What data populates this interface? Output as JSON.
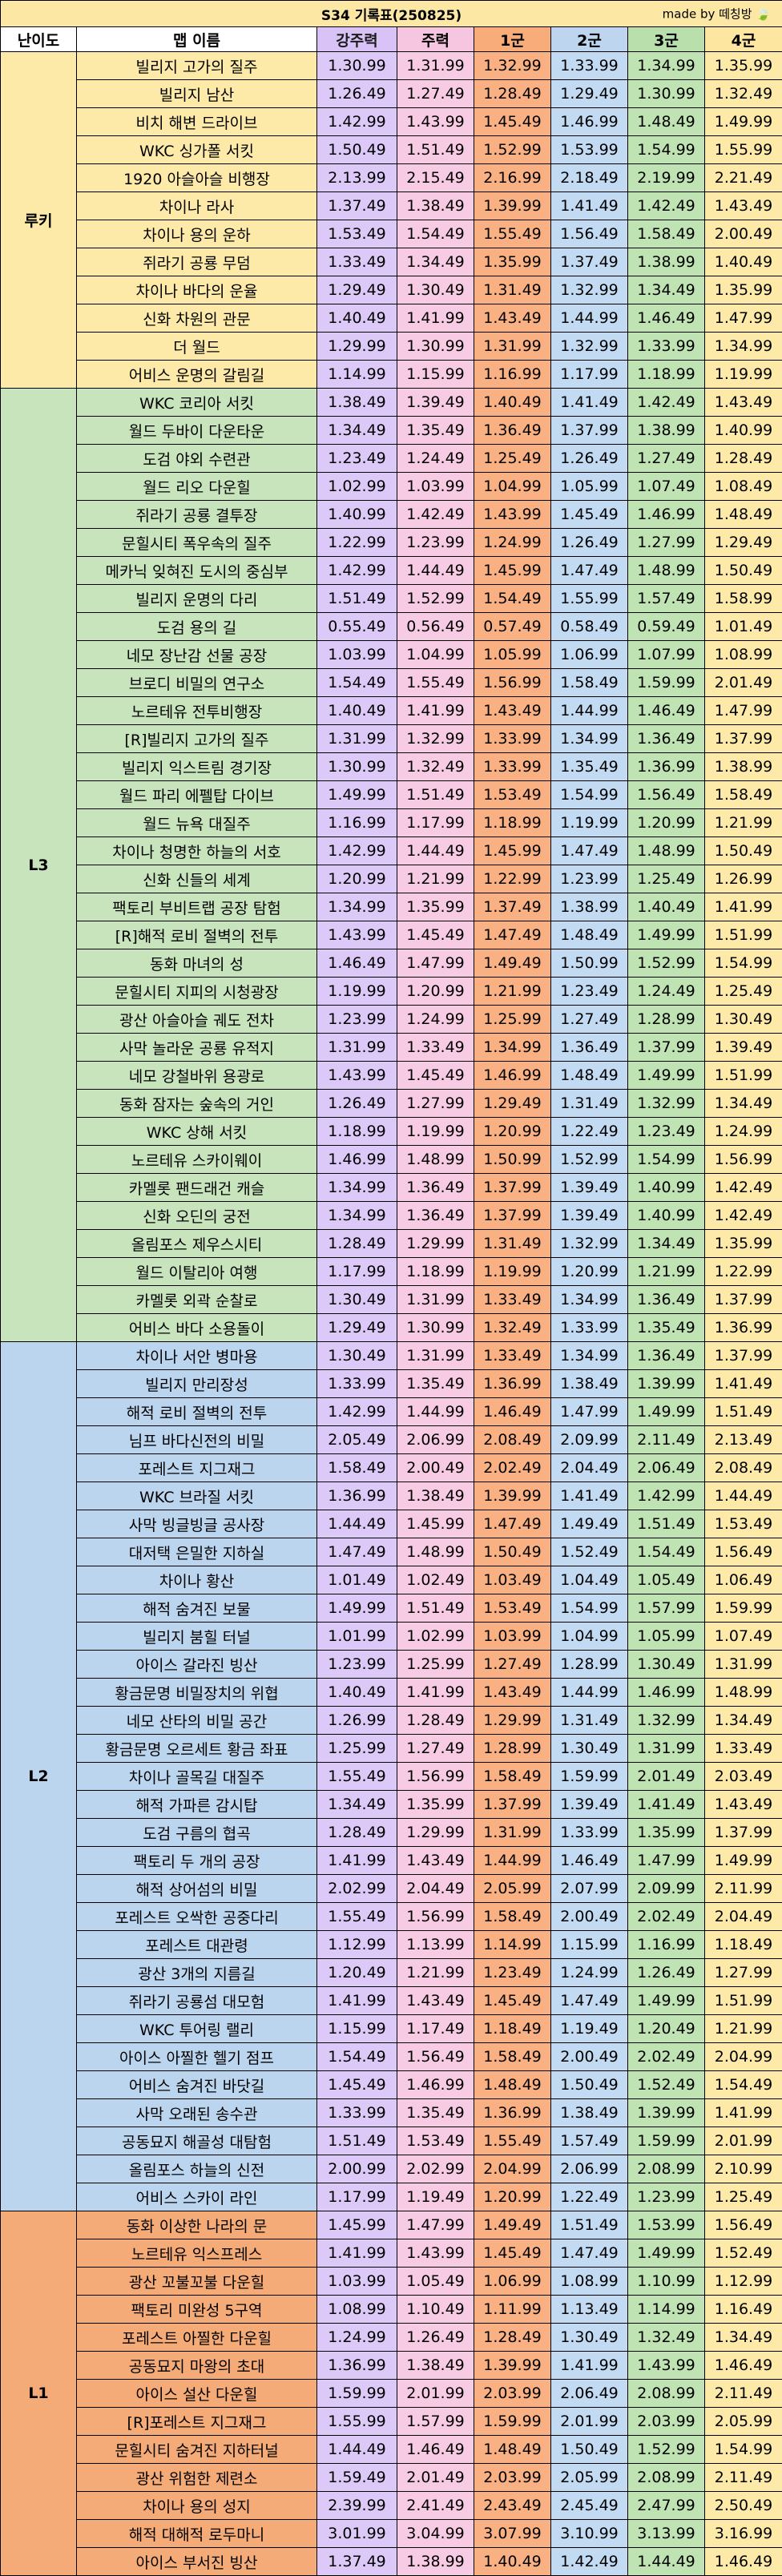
{
  "title": "S34 기록표(250825)",
  "made_by": "made by 떼칭방",
  "headers": [
    "난이도",
    "맵 이름",
    "강주력",
    "주력",
    "1군",
    "2군",
    "3군",
    "4군"
  ],
  "colors": {
    "rookie": "#fdeaa9",
    "L3": "#c8e4bd",
    "L2": "#bcd5ef",
    "L1": "#f5ab78"
  },
  "tiers": [
    {
      "label": "루키",
      "key": "rookie",
      "rows": [
        [
          "빌리지 고가의 질주",
          "1.30.99",
          "1.31.99",
          "1.32.99",
          "1.33.99",
          "1.34.99",
          "1.35.99"
        ],
        [
          "빌리지 남산",
          "1.26.49",
          "1.27.49",
          "1.28.49",
          "1.29.49",
          "1.30.99",
          "1.32.49"
        ],
        [
          "비치 해변 드라이브",
          "1.42.99",
          "1.43.99",
          "1.45.49",
          "1.46.99",
          "1.48.49",
          "1.49.99"
        ],
        [
          "WKC 싱가폴 서킷",
          "1.50.49",
          "1.51.49",
          "1.52.99",
          "1.53.99",
          "1.54.99",
          "1.55.99"
        ],
        [
          "1920 아슬아슬 비행장",
          "2.13.99",
          "2.15.49",
          "2.16.99",
          "2.18.49",
          "2.19.99",
          "2.21.49"
        ],
        [
          "차이나 라사",
          "1.37.49",
          "1.38.49",
          "1.39.99",
          "1.41.49",
          "1.42.49",
          "1.43.49"
        ],
        [
          "차이나 용의 운하",
          "1.53.49",
          "1.54.49",
          "1.55.49",
          "1.56.49",
          "1.58.49",
          "2.00.49"
        ],
        [
          "쥐라기 공룡 무덤",
          "1.33.49",
          "1.34.49",
          "1.35.99",
          "1.37.49",
          "1.38.99",
          "1.40.49"
        ],
        [
          "차이나 바다의 운율",
          "1.29.49",
          "1.30.49",
          "1.31.49",
          "1.32.99",
          "1.34.49",
          "1.35.99"
        ],
        [
          "신화 차원의 관문",
          "1.40.49",
          "1.41.99",
          "1.43.49",
          "1.44.99",
          "1.46.49",
          "1.47.99"
        ],
        [
          "더 월드",
          "1.29.99",
          "1.30.99",
          "1.31.99",
          "1.32.99",
          "1.33.99",
          "1.34.99"
        ],
        [
          "어비스 운명의 갈림길",
          "1.14.99",
          "1.15.99",
          "1.16.99",
          "1.17.99",
          "1.18.99",
          "1.19.99"
        ]
      ]
    },
    {
      "label": "L3",
      "key": "L3",
      "rows": [
        [
          "WKC 코리아 서킷",
          "1.38.49",
          "1.39.49",
          "1.40.49",
          "1.41.49",
          "1.42.49",
          "1.43.49"
        ],
        [
          "월드 두바이 다운타운",
          "1.34.49",
          "1.35.49",
          "1.36.49",
          "1.37.99",
          "1.38.99",
          "1.40.99"
        ],
        [
          "도검 야외 수련관",
          "1.23.49",
          "1.24.49",
          "1.25.49",
          "1.26.49",
          "1.27.49",
          "1.28.49"
        ],
        [
          "월드 리오 다운힐",
          "1.02.99",
          "1.03.99",
          "1.04.99",
          "1.05.99",
          "1.07.49",
          "1.08.49"
        ],
        [
          "쥐라기 공룡 결투장",
          "1.40.99",
          "1.42.49",
          "1.43.99",
          "1.45.49",
          "1.46.99",
          "1.48.49"
        ],
        [
          "문힐시티 폭우속의 질주",
          "1.22.99",
          "1.23.99",
          "1.24.99",
          "1.26.49",
          "1.27.99",
          "1.29.49"
        ],
        [
          "메카닉 잊혀진 도시의 중심부",
          "1.42.99",
          "1.44.49",
          "1.45.99",
          "1.47.49",
          "1.48.99",
          "1.50.49"
        ],
        [
          "빌리지 운명의 다리",
          "1.51.49",
          "1.52.99",
          "1.54.49",
          "1.55.99",
          "1.57.49",
          "1.58.99"
        ],
        [
          "도검 용의 길",
          "0.55.49",
          "0.56.49",
          "0.57.49",
          "0.58.49",
          "0.59.49",
          "1.01.49"
        ],
        [
          "네모 장난감 선물 공장",
          "1.03.99",
          "1.04.99",
          "1.05.99",
          "1.06.99",
          "1.07.99",
          "1.08.99"
        ],
        [
          "브로디 비밀의 연구소",
          "1.54.49",
          "1.55.49",
          "1.56.99",
          "1.58.49",
          "1.59.99",
          "2.01.49"
        ],
        [
          "노르테유 전투비행장",
          "1.40.49",
          "1.41.99",
          "1.43.49",
          "1.44.99",
          "1.46.49",
          "1.47.99"
        ],
        [
          "[R]빌리지 고가의 질주",
          "1.31.99",
          "1.32.99",
          "1.33.99",
          "1.34.99",
          "1.36.49",
          "1.37.99"
        ],
        [
          "빌리지 익스트림 경기장",
          "1.30.99",
          "1.32.49",
          "1.33.99",
          "1.35.49",
          "1.36.99",
          "1.38.99"
        ],
        [
          "월드 파리 에펠탑 다이브",
          "1.49.99",
          "1.51.49",
          "1.53.49",
          "1.54.99",
          "1.56.49",
          "1.58.49"
        ],
        [
          "월드 뉴욕 대질주",
          "1.16.99",
          "1.17.99",
          "1.18.99",
          "1.19.99",
          "1.20.99",
          "1.21.99"
        ],
        [
          "차이나 청명한 하늘의 서호",
          "1.42.99",
          "1.44.49",
          "1.45.99",
          "1.47.49",
          "1.48.99",
          "1.50.49"
        ],
        [
          "신화 신들의 세계",
          "1.20.99",
          "1.21.99",
          "1.22.99",
          "1.23.99",
          "1.25.49",
          "1.26.99"
        ],
        [
          "팩토리 부비트랩 공장 탐험",
          "1.34.99",
          "1.35.99",
          "1.37.49",
          "1.38.99",
          "1.40.49",
          "1.41.99"
        ],
        [
          "[R]해적 로비 절벽의 전투",
          "1.43.99",
          "1.45.49",
          "1.47.49",
          "1.48.49",
          "1.49.99",
          "1.51.99"
        ],
        [
          "동화 마녀의 성",
          "1.46.49",
          "1.47.99",
          "1.49.49",
          "1.50.99",
          "1.52.99",
          "1.54.99"
        ],
        [
          "문힐시티 지피의 시청광장",
          "1.19.99",
          "1.20.99",
          "1.21.99",
          "1.23.49",
          "1.24.49",
          "1.25.49"
        ],
        [
          "광산 아슬아슬 궤도 전차",
          "1.23.99",
          "1.24.99",
          "1.25.99",
          "1.27.49",
          "1.28.99",
          "1.30.49"
        ],
        [
          "사막 놀라운 공룡 유적지",
          "1.31.99",
          "1.33.49",
          "1.34.99",
          "1.36.49",
          "1.37.99",
          "1.39.49"
        ],
        [
          "네모 강철바위 용광로",
          "1.43.99",
          "1.45.49",
          "1.46.99",
          "1.48.49",
          "1.49.99",
          "1.51.99"
        ],
        [
          "동화 잠자는 숲속의 거인",
          "1.26.49",
          "1.27.99",
          "1.29.49",
          "1.31.49",
          "1.32.99",
          "1.34.49"
        ],
        [
          "WKC 상해 서킷",
          "1.18.99",
          "1.19.99",
          "1.20.99",
          "1.22.49",
          "1.23.49",
          "1.24.99"
        ],
        [
          "노르테유 스카이웨이",
          "1.46.99",
          "1.48.99",
          "1.50.99",
          "1.52.99",
          "1.54.99",
          "1.56.99"
        ],
        [
          "카멜롯 팬드래건 캐슬",
          "1.34.99",
          "1.36.49",
          "1.37.99",
          "1.39.49",
          "1.40.99",
          "1.42.49"
        ],
        [
          "신화 오딘의 궁전",
          "1.34.99",
          "1.36.49",
          "1.37.99",
          "1.39.49",
          "1.40.99",
          "1.42.49"
        ],
        [
          "올림포스 제우스시티",
          "1.28.49",
          "1.29.99",
          "1.31.49",
          "1.32.99",
          "1.34.49",
          "1.35.99"
        ],
        [
          "월드 이탈리아 여행",
          "1.17.99",
          "1.18.99",
          "1.19.99",
          "1.20.99",
          "1.21.99",
          "1.22.99"
        ],
        [
          "카멜롯 외곽 순찰로",
          "1.30.49",
          "1.31.99",
          "1.33.49",
          "1.34.99",
          "1.36.49",
          "1.37.99"
        ],
        [
          "어비스 바다 소용돌이",
          "1.29.49",
          "1.30.99",
          "1.32.49",
          "1.33.99",
          "1.35.49",
          "1.36.99"
        ]
      ]
    },
    {
      "label": "L2",
      "key": "L2",
      "rows": [
        [
          "차이나 서안 병마용",
          "1.30.49",
          "1.31.99",
          "1.33.49",
          "1.34.99",
          "1.36.49",
          "1.37.99"
        ],
        [
          "빌리지 만리장성",
          "1.33.99",
          "1.35.49",
          "1.36.99",
          "1.38.49",
          "1.39.99",
          "1.41.49"
        ],
        [
          "해적 로비 절벽의 전투",
          "1.42.99",
          "1.44.99",
          "1.46.49",
          "1.47.99",
          "1.49.99",
          "1.51.49"
        ],
        [
          "님프 바다신전의 비밀",
          "2.05.49",
          "2.06.99",
          "2.08.49",
          "2.09.99",
          "2.11.49",
          "2.13.49"
        ],
        [
          "포레스트 지그재그",
          "1.58.49",
          "2.00.49",
          "2.02.49",
          "2.04.49",
          "2.06.49",
          "2.08.49"
        ],
        [
          "WKC 브라질 서킷",
          "1.36.99",
          "1.38.49",
          "1.39.99",
          "1.41.49",
          "1.42.99",
          "1.44.49"
        ],
        [
          "사막 빙글빙글 공사장",
          "1.44.49",
          "1.45.99",
          "1.47.49",
          "1.49.49",
          "1.51.49",
          "1.53.49"
        ],
        [
          "대저택 은밀한 지하실",
          "1.47.49",
          "1.48.99",
          "1.50.49",
          "1.52.49",
          "1.54.49",
          "1.56.49"
        ],
        [
          "차이나 황산",
          "1.01.49",
          "1.02.49",
          "1.03.49",
          "1.04.49",
          "1.05.49",
          "1.06.49"
        ],
        [
          "해적 숨겨진 보물",
          "1.49.99",
          "1.51.49",
          "1.53.49",
          "1.54.99",
          "1.57.99",
          "1.59.99"
        ],
        [
          "빌리지 붐힐 터널",
          "1.01.99",
          "1.02.99",
          "1.03.99",
          "1.04.99",
          "1.05.99",
          "1.07.49"
        ],
        [
          "아이스 갈라진 빙산",
          "1.23.99",
          "1.25.99",
          "1.27.49",
          "1.28.99",
          "1.30.49",
          "1.31.99"
        ],
        [
          "황금문명 비밀장치의 위협",
          "1.40.49",
          "1.41.99",
          "1.43.49",
          "1.44.99",
          "1.46.99",
          "1.48.99"
        ],
        [
          "네모 산타의 비밀 공간",
          "1.26.99",
          "1.28.49",
          "1.29.99",
          "1.31.49",
          "1.32.99",
          "1.34.49"
        ],
        [
          "황금문명 오르세트 황금 좌표",
          "1.25.99",
          "1.27.49",
          "1.28.99",
          "1.30.49",
          "1.31.99",
          "1.33.49"
        ],
        [
          "차이나 골목길 대질주",
          "1.55.49",
          "1.56.99",
          "1.58.49",
          "1.59.99",
          "2.01.49",
          "2.03.49"
        ],
        [
          "해적 가파른 감시탑",
          "1.34.49",
          "1.35.99",
          "1.37.99",
          "1.39.49",
          "1.41.49",
          "1.43.49"
        ],
        [
          "도검 구름의 협곡",
          "1.28.49",
          "1.29.99",
          "1.31.99",
          "1.33.99",
          "1.35.99",
          "1.37.99"
        ],
        [
          "팩토리 두 개의 공장",
          "1.41.99",
          "1.43.49",
          "1.44.99",
          "1.46.49",
          "1.47.99",
          "1.49.99"
        ],
        [
          "해적 상어섬의 비밀",
          "2.02.99",
          "2.04.49",
          "2.05.99",
          "2.07.99",
          "2.09.99",
          "2.11.99"
        ],
        [
          "포레스트 오싹한 공중다리",
          "1.55.49",
          "1.56.99",
          "1.58.49",
          "2.00.49",
          "2.02.49",
          "2.04.49"
        ],
        [
          "포레스트 대관령",
          "1.12.99",
          "1.13.99",
          "1.14.99",
          "1.15.99",
          "1.16.99",
          "1.18.49"
        ],
        [
          "광산 3개의 지름길",
          "1.20.49",
          "1.21.99",
          "1.23.49",
          "1.24.99",
          "1.26.49",
          "1.27.99"
        ],
        [
          "쥐라기 공룡섬 대모험",
          "1.41.99",
          "1.43.49",
          "1.45.49",
          "1.47.49",
          "1.49.99",
          "1.51.99"
        ],
        [
          "WKC 투어링 랠리",
          "1.15.99",
          "1.17.49",
          "1.18.49",
          "1.19.49",
          "1.20.49",
          "1.21.99"
        ],
        [
          "아이스 아찔한 헬기 점프",
          "1.54.49",
          "1.56.49",
          "1.58.49",
          "2.00.49",
          "2.02.49",
          "2.04.99"
        ],
        [
          "어비스 숨겨진 바닷길",
          "1.45.49",
          "1.46.99",
          "1.48.49",
          "1.50.49",
          "1.52.49",
          "1.54.49"
        ],
        [
          "사막 오래된 송수관",
          "1.33.99",
          "1.35.49",
          "1.36.99",
          "1.38.49",
          "1.39.99",
          "1.41.99"
        ],
        [
          "공동묘지 해골성 대탐험",
          "1.51.49",
          "1.53.49",
          "1.55.49",
          "1.57.49",
          "1.59.99",
          "2.01.99"
        ],
        [
          "올림포스 하늘의 신전",
          "2.00.99",
          "2.02.99",
          "2.04.99",
          "2.06.99",
          "2.08.99",
          "2.10.99"
        ],
        [
          "어비스 스카이 라인",
          "1.17.99",
          "1.19.49",
          "1.20.99",
          "1.22.49",
          "1.23.99",
          "1.25.49"
        ]
      ]
    },
    {
      "label": "L1",
      "key": "L1",
      "rows": [
        [
          "동화 이상한 나라의 문",
          "1.45.99",
          "1.47.99",
          "1.49.49",
          "1.51.49",
          "1.53.99",
          "1.56.49"
        ],
        [
          "노르테유 익스프레스",
          "1.41.99",
          "1.43.99",
          "1.45.49",
          "1.47.49",
          "1.49.99",
          "1.52.49"
        ],
        [
          "광산 꼬불꼬불 다운힐",
          "1.03.99",
          "1.05.49",
          "1.06.99",
          "1.08.99",
          "1.10.99",
          "1.12.99"
        ],
        [
          "팩토리 미완성 5구역",
          "1.08.99",
          "1.10.49",
          "1.11.99",
          "1.13.49",
          "1.14.99",
          "1.16.49"
        ],
        [
          "포레스트 아찔한 다운힐",
          "1.24.99",
          "1.26.49",
          "1.28.49",
          "1.30.49",
          "1.32.49",
          "1.34.49"
        ],
        [
          "공동묘지 마왕의 초대",
          "1.36.99",
          "1.38.49",
          "1.39.99",
          "1.41.99",
          "1.43.99",
          "1.46.49"
        ],
        [
          "아이스 설산 다운힐",
          "1.59.99",
          "2.01.99",
          "2.03.99",
          "2.06.49",
          "2.08.99",
          "2.11.49"
        ],
        [
          "[R]포레스트 지그재그",
          "1.55.99",
          "1.57.99",
          "1.59.99",
          "2.01.99",
          "2.03.99",
          "2.05.99"
        ],
        [
          "문힐시티 숨겨진 지하터널",
          "1.44.49",
          "1.46.49",
          "1.48.49",
          "1.50.49",
          "1.52.99",
          "1.54.99"
        ],
        [
          "광산 위험한 제련소",
          "1.59.49",
          "2.01.49",
          "2.03.99",
          "2.05.99",
          "2.08.99",
          "2.11.49"
        ],
        [
          "차이나 용의 성지",
          "2.39.99",
          "2.41.49",
          "2.43.49",
          "2.45.49",
          "2.47.99",
          "2.50.49"
        ],
        [
          "해적 대해적 로두마니",
          "3.01.99",
          "3.04.99",
          "3.07.99",
          "3.10.99",
          "3.13.99",
          "3.16.99"
        ],
        [
          "아이스 부서진 빙산",
          "1.37.49",
          "1.38.99",
          "1.40.49",
          "1.42.49",
          "1.44.49",
          "1.46.49"
        ]
      ]
    }
  ]
}
